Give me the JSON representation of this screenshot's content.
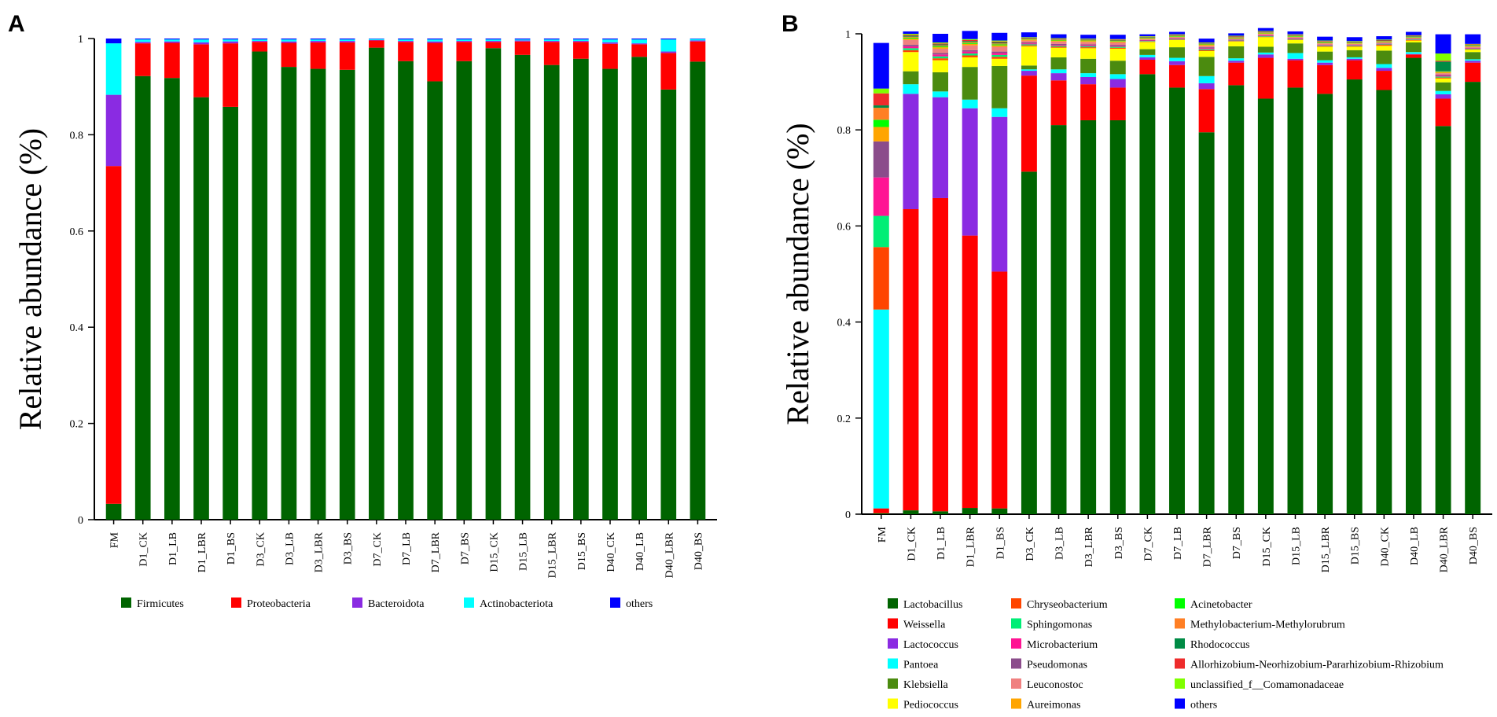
{
  "chart_data": [
    {
      "type": "bar",
      "stacked": true,
      "panel_label": "A",
      "ylabel": "Relative abundance (%)",
      "xlabel": "",
      "ylim": [
        0,
        1
      ],
      "ytick_labels": [
        "0",
        "0.2",
        "0.4",
        "0.6",
        "0.8",
        "1"
      ],
      "categories": [
        "FM",
        "D1_CK",
        "D1_LB",
        "D1_LBR",
        "D1_BS",
        "D3_CK",
        "D3_LB",
        "D3_LBR",
        "D3_BS",
        "D7_CK",
        "D7_LB",
        "D7_LBR",
        "D7_BS",
        "D15_CK",
        "D15_LB",
        "D15_LBR",
        "D15_BS",
        "D40_CK",
        "D40_LB",
        "D40_LBR",
        "D40_BS"
      ],
      "series": [
        {
          "name": "Firmicutes",
          "color": "#006400",
          "values": [
            0.033,
            0.922,
            0.918,
            0.878,
            0.858,
            0.973,
            0.941,
            0.937,
            0.935,
            0.981,
            0.953,
            0.911,
            0.953,
            0.98,
            0.966,
            0.945,
            0.958,
            0.937,
            0.962,
            0.894,
            0.952
          ]
        },
        {
          "name": "Proteobacteria",
          "color": "#ff0000",
          "values": [
            0.702,
            0.068,
            0.073,
            0.11,
            0.132,
            0.02,
            0.05,
            0.055,
            0.057,
            0.015,
            0.04,
            0.08,
            0.04,
            0.013,
            0.028,
            0.048,
            0.035,
            0.052,
            0.026,
            0.076,
            0.042
          ]
        },
        {
          "name": "Bacteroidota",
          "color": "#8a2be2",
          "values": [
            0.148,
            0.003,
            0.003,
            0.004,
            0.004,
            0.002,
            0.003,
            0.003,
            0.003,
            0.001,
            0.002,
            0.003,
            0.002,
            0.002,
            0.002,
            0.002,
            0.002,
            0.003,
            0.002,
            0.003,
            0.002
          ]
        },
        {
          "name": "Actinobacteriota",
          "color": "#00ffff",
          "values": [
            0.107,
            0.005,
            0.004,
            0.006,
            0.004,
            0.003,
            0.004,
            0.003,
            0.003,
            0.002,
            0.003,
            0.004,
            0.003,
            0.003,
            0.002,
            0.003,
            0.003,
            0.006,
            0.008,
            0.025,
            0.003
          ]
        },
        {
          "name": "others",
          "color": "#0000ff",
          "values": [
            0.01,
            0.002,
            0.002,
            0.002,
            0.002,
            0.002,
            0.002,
            0.002,
            0.002,
            0.001,
            0.002,
            0.002,
            0.002,
            0.002,
            0.002,
            0.002,
            0.002,
            0.002,
            0.002,
            0.002,
            0.001
          ]
        }
      ]
    },
    {
      "type": "bar",
      "stacked": true,
      "panel_label": "B",
      "ylabel": "Relative abundance (%)",
      "xlabel": "",
      "ylim": [
        0,
        1
      ],
      "ytick_labels": [
        "0",
        "0.2",
        "0.4",
        "0.6",
        "0.8",
        "1"
      ],
      "categories": [
        "FM",
        "D1_CK",
        "D1_LB",
        "D1_LBR",
        "D1_BS",
        "D3_CK",
        "D3_LB",
        "D3_LBR",
        "D3_BS",
        "D7_CK",
        "D7_LB",
        "D7_LBR",
        "D7_BS",
        "D15_CK",
        "D15_LB",
        "D15_LBR",
        "D15_BS",
        "D40_CK",
        "D40_LB",
        "D40_LBR",
        "D40_BS"
      ],
      "series": [
        {
          "name": "Lactobacillus",
          "color": "#006400",
          "values": [
            0.002,
            0.008,
            0.006,
            0.013,
            0.012,
            0.713,
            0.81,
            0.82,
            0.82,
            0.916,
            0.888,
            0.795,
            0.893,
            0.865,
            0.888,
            0.875,
            0.905,
            0.883,
            0.95,
            0.808,
            0.9
          ]
        },
        {
          "name": "Weissella",
          "color": "#ff0000",
          "values": [
            0.01,
            0.627,
            0.652,
            0.567,
            0.493,
            0.2,
            0.093,
            0.075,
            0.068,
            0.03,
            0.047,
            0.09,
            0.047,
            0.085,
            0.057,
            0.06,
            0.04,
            0.04,
            0.007,
            0.057,
            0.04
          ]
        },
        {
          "name": "Lactococcus",
          "color": "#8a2be2",
          "values": [
            0.0,
            0.24,
            0.21,
            0.265,
            0.322,
            0.01,
            0.015,
            0.015,
            0.018,
            0.005,
            0.008,
            0.012,
            0.004,
            0.007,
            0.003,
            0.005,
            0.003,
            0.006,
            0.001,
            0.009,
            0.004
          ]
        },
        {
          "name": "Pantoea",
          "color": "#00ffff",
          "values": [
            0.414,
            0.02,
            0.012,
            0.018,
            0.018,
            0.003,
            0.008,
            0.008,
            0.01,
            0.005,
            0.007,
            0.015,
            0.005,
            0.004,
            0.012,
            0.005,
            0.003,
            0.008,
            0.004,
            0.007,
            0.003
          ]
        },
        {
          "name": "Klebsiella",
          "color": "#4b8b0f",
          "values": [
            0.0,
            0.027,
            0.04,
            0.068,
            0.088,
            0.008,
            0.025,
            0.03,
            0.028,
            0.012,
            0.022,
            0.04,
            0.025,
            0.012,
            0.02,
            0.018,
            0.015,
            0.028,
            0.02,
            0.018,
            0.015
          ]
        },
        {
          "name": "Pediococcus",
          "color": "#ffff00",
          "values": [
            0.0,
            0.04,
            0.025,
            0.02,
            0.015,
            0.04,
            0.02,
            0.022,
            0.025,
            0.015,
            0.015,
            0.012,
            0.01,
            0.02,
            0.007,
            0.01,
            0.007,
            0.01,
            0.004,
            0.008,
            0.005
          ]
        },
        {
          "name": "Chryseobacterium",
          "color": "#ff4500",
          "values": [
            0.13,
            0.004,
            0.004,
            0.004,
            0.004,
            0.002,
            0.002,
            0.002,
            0.002,
            0.001,
            0.001,
            0.002,
            0.001,
            0.001,
            0.001,
            0.001,
            0.001,
            0.002,
            0.001,
            0.002,
            0.001
          ]
        },
        {
          "name": "Sphingomonas",
          "color": "#00ee76",
          "values": [
            0.065,
            0.004,
            0.004,
            0.004,
            0.004,
            0.002,
            0.002,
            0.002,
            0.002,
            0.001,
            0.001,
            0.002,
            0.001,
            0.001,
            0.001,
            0.001,
            0.001,
            0.001,
            0.001,
            0.002,
            0.001
          ]
        },
        {
          "name": "Microbacterium",
          "color": "#ff1493",
          "values": [
            0.08,
            0.004,
            0.004,
            0.004,
            0.004,
            0.002,
            0.002,
            0.002,
            0.002,
            0.001,
            0.001,
            0.002,
            0.001,
            0.001,
            0.001,
            0.001,
            0.001,
            0.001,
            0.001,
            0.002,
            0.001
          ]
        },
        {
          "name": "Pseudomonas",
          "color": "#8b4c8b",
          "values": [
            0.075,
            0.003,
            0.003,
            0.003,
            0.003,
            0.002,
            0.002,
            0.002,
            0.002,
            0.001,
            0.001,
            0.002,
            0.001,
            0.001,
            0.001,
            0.001,
            0.001,
            0.001,
            0.001,
            0.002,
            0.001
          ]
        },
        {
          "name": "Leuconostoc",
          "color": "#f08080",
          "values": [
            0.0,
            0.01,
            0.009,
            0.01,
            0.01,
            0.004,
            0.005,
            0.005,
            0.005,
            0.002,
            0.002,
            0.003,
            0.002,
            0.003,
            0.002,
            0.003,
            0.002,
            0.002,
            0.001,
            0.003,
            0.002
          ]
        },
        {
          "name": "Aureimonas",
          "color": "#ffa500",
          "values": [
            0.03,
            0.003,
            0.003,
            0.003,
            0.003,
            0.002,
            0.002,
            0.002,
            0.002,
            0.001,
            0.001,
            0.002,
            0.001,
            0.001,
            0.001,
            0.001,
            0.001,
            0.001,
            0.001,
            0.002,
            0.001
          ]
        },
        {
          "name": "Acinetobacter",
          "color": "#00ff00",
          "values": [
            0.015,
            0.002,
            0.002,
            0.002,
            0.002,
            0.001,
            0.001,
            0.001,
            0.001,
            0.001,
            0.001,
            0.001,
            0.001,
            0.001,
            0.001,
            0.001,
            0.001,
            0.001,
            0.001,
            0.001,
            0.001
          ]
        },
        {
          "name": "Methylobacterium-Methylorubrum",
          "color": "#ff7f24",
          "values": [
            0.025,
            0.002,
            0.002,
            0.002,
            0.002,
            0.001,
            0.001,
            0.001,
            0.001,
            0.001,
            0.001,
            0.001,
            0.001,
            0.001,
            0.001,
            0.001,
            0.001,
            0.001,
            0.001,
            0.001,
            0.001
          ]
        },
        {
          "name": "Rhodococcus",
          "color": "#008b45",
          "values": [
            0.005,
            0.002,
            0.002,
            0.002,
            0.002,
            0.001,
            0.001,
            0.001,
            0.001,
            0.001,
            0.001,
            0.001,
            0.001,
            0.001,
            0.001,
            0.001,
            0.001,
            0.001,
            0.001,
            0.02,
            0.001
          ]
        },
        {
          "name": "Allorhizobium-Neorhizobium-Pararhizobium-Rhizobium",
          "color": "#ee2c2c",
          "values": [
            0.025,
            0.002,
            0.002,
            0.002,
            0.002,
            0.001,
            0.001,
            0.001,
            0.001,
            0.001,
            0.001,
            0.001,
            0.001,
            0.001,
            0.001,
            0.001,
            0.001,
            0.001,
            0.001,
            0.002,
            0.001
          ]
        },
        {
          "name": "unclassified_f__Comamonadaceae",
          "color": "#7fff00",
          "values": [
            0.01,
            0.002,
            0.002,
            0.002,
            0.002,
            0.001,
            0.001,
            0.001,
            0.001,
            0.001,
            0.001,
            0.001,
            0.001,
            0.001,
            0.001,
            0.001,
            0.001,
            0.001,
            0.001,
            0.015,
            0.001
          ]
        },
        {
          "name": "others",
          "color": "#0000ff",
          "values": [
            0.095,
            0.005,
            0.018,
            0.017,
            0.016,
            0.01,
            0.008,
            0.008,
            0.009,
            0.004,
            0.005,
            0.008,
            0.005,
            0.006,
            0.006,
            0.008,
            0.008,
            0.007,
            0.007,
            0.04,
            0.02
          ]
        }
      ]
    }
  ]
}
